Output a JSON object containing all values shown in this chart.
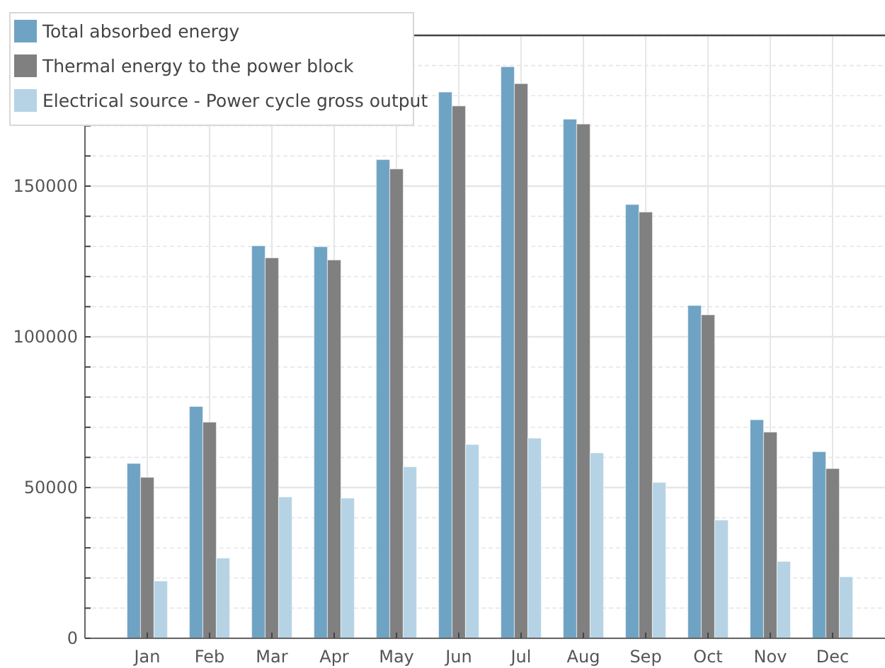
{
  "chart_data": {
    "type": "bar",
    "categories": [
      "Jan",
      "Feb",
      "Mar",
      "Apr",
      "May",
      "Jun",
      "Jul",
      "Aug",
      "Sep",
      "Oct",
      "Nov",
      "Dec"
    ],
    "series": [
      {
        "name": "Total absorbed energy",
        "color": "#6fa3c4",
        "values": [
          58000,
          76900,
          130200,
          129900,
          158800,
          181200,
          189600,
          172200,
          143900,
          110400,
          72500,
          61900
        ]
      },
      {
        "name": "Thermal energy to the power block",
        "color": "#808080",
        "values": [
          53400,
          71700,
          126200,
          125500,
          155700,
          176600,
          184000,
          170600,
          141400,
          107300,
          68400,
          56300
        ]
      },
      {
        "name": "Electrical source - Power cycle gross output",
        "color": "#b5d3e4",
        "values": [
          19000,
          26600,
          46900,
          46500,
          56900,
          64300,
          66400,
          61500,
          51700,
          39200,
          25500,
          20400
        ]
      }
    ],
    "ylim": [
      0,
      200000
    ],
    "yticks": [
      0,
      {
        "value": 10000,
        "label": null
      },
      {
        "value": 20000,
        "label": null
      },
      {
        "value": 30000,
        "label": null
      },
      {
        "value": 40000,
        "label": null
      },
      50000,
      {
        "value": 60000,
        "label": null
      },
      {
        "value": 70000,
        "label": null
      },
      {
        "value": 80000,
        "label": null
      },
      {
        "value": 90000,
        "label": null
      },
      100000,
      {
        "value": 110000,
        "label": null
      },
      {
        "value": 120000,
        "label": null
      },
      {
        "value": 130000,
        "label": null
      },
      {
        "value": 140000,
        "label": null
      },
      150000,
      {
        "value": 160000,
        "label": null
      },
      {
        "value": 170000,
        "label": null
      },
      {
        "value": 180000,
        "label": null
      },
      {
        "value": 190000,
        "label": null
      },
      {
        "value": 200000,
        "label": null
      }
    ],
    "grid": true,
    "legend": "top left"
  }
}
